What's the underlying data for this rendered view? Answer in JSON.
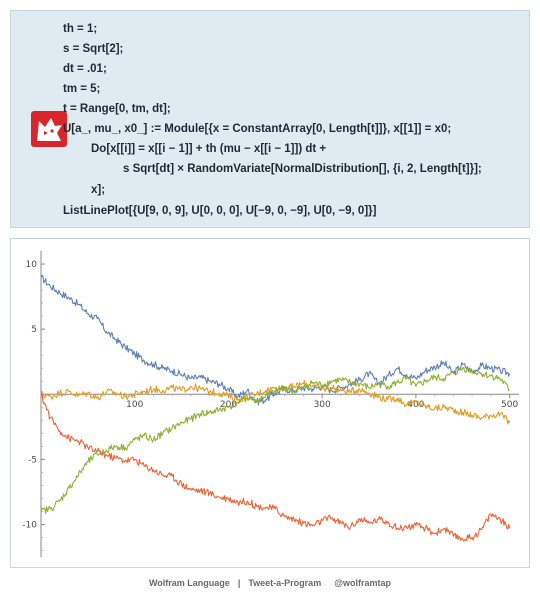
{
  "code": {
    "lines": [
      "th = 1;",
      "s = Sqrt[2];",
      "dt = .01;",
      "tm = 5;",
      "t = Range[0, tm, dt];",
      "U[a_, mu_, x0_] := Module[{x = ConstantArray[0, Length[t]]}, x[[1]] = x0;",
      "Do[x[[i]] = x[[i − 1]] + th (mu − x[[i − 1]]) dt +",
      "s Sqrt[dt] × RandomVariate[NormalDistribution[], {i, 2, Length[t]}];",
      "x];",
      "ListLinePlot[{U[9, 0, 9], U[0, 0, 0], U[−9, 0, −9], U[0, −9, 0]}]"
    ]
  },
  "colors": {
    "panel_bg": "#dfeaf1",
    "logo_red": "#d8262c",
    "series_blue": "#5e81b5",
    "series_orange": "#e19c24",
    "series_green": "#8fb032",
    "series_red": "#eb6235"
  },
  "icons": {
    "logo": "wolfram-wolf-icon"
  },
  "chart_data": {
    "type": "line",
    "title": "",
    "xlabel": "",
    "ylabel": "",
    "xlim": [
      0,
      510
    ],
    "ylim": [
      -12.5,
      11
    ],
    "x_ticks": [
      100,
      200,
      300,
      400,
      500
    ],
    "y_ticks": [
      -10,
      -5,
      5,
      10
    ],
    "x_tick_labels": [
      "100",
      "200",
      "300",
      "400",
      "500"
    ],
    "y_tick_labels": [
      "-10",
      "-5",
      "5",
      "10"
    ],
    "grid": false,
    "series": [
      {
        "color": "#5e81b5",
        "x": [
          0,
          10,
          20,
          30,
          40,
          50,
          60,
          70,
          80,
          90,
          100,
          110,
          120,
          130,
          140,
          150,
          160,
          170,
          180,
          190,
          200,
          210,
          220,
          230,
          240,
          250,
          260,
          270,
          280,
          290,
          300,
          310,
          320,
          330,
          340,
          350,
          360,
          370,
          380,
          390,
          400,
          410,
          420,
          430,
          440,
          450,
          460,
          470,
          480,
          490,
          500
        ],
        "values": [
          9,
          8.3,
          7.8,
          7.4,
          6.9,
          6.2,
          5.8,
          4.8,
          4.2,
          3.6,
          3.1,
          2.6,
          2.3,
          2,
          1.8,
          1.5,
          1.2,
          1.3,
          1,
          0.8,
          0.4,
          -0.2,
          0.3,
          -0.6,
          -0.4,
          0.1,
          0.4,
          0.3,
          0.5,
          0.4,
          0.6,
          0.3,
          0.5,
          0.8,
          1.1,
          1.6,
          0.8,
          1.4,
          2,
          1.5,
          1.2,
          1.8,
          2.1,
          2.4,
          1.6,
          2.3,
          1.7,
          2.2,
          2,
          1.8,
          1.6
        ]
      },
      {
        "color": "#e19c24",
        "x": [
          0,
          10,
          20,
          30,
          40,
          50,
          60,
          70,
          80,
          90,
          100,
          110,
          120,
          130,
          140,
          150,
          160,
          170,
          180,
          190,
          200,
          210,
          220,
          230,
          240,
          250,
          260,
          270,
          280,
          290,
          300,
          310,
          320,
          330,
          340,
          350,
          360,
          370,
          380,
          390,
          400,
          410,
          420,
          430,
          440,
          450,
          460,
          470,
          480,
          490,
          500
        ],
        "values": [
          0,
          -0.2,
          0.1,
          0.2,
          -0.1,
          0.1,
          -0.3,
          0.2,
          0.1,
          -0.2,
          0,
          0.2,
          0.4,
          0.3,
          0.5,
          0.3,
          0.6,
          0.4,
          0.2,
          0.1,
          -0.1,
          -0.4,
          -0.2,
          0,
          0.3,
          0.5,
          0.4,
          0.6,
          0.8,
          0.7,
          0.4,
          0.5,
          0.3,
          0.2,
          0.4,
          0.1,
          -0.2,
          -0.4,
          -0.3,
          -0.8,
          -0.6,
          -0.9,
          -1.1,
          -1,
          -1.2,
          -1.4,
          -1.6,
          -1.8,
          -1.6,
          -1.5,
          -2.2
        ]
      },
      {
        "color": "#8fb032",
        "x": [
          0,
          10,
          20,
          30,
          40,
          50,
          60,
          70,
          80,
          90,
          100,
          110,
          120,
          130,
          140,
          150,
          160,
          170,
          180,
          190,
          200,
          210,
          220,
          230,
          240,
          250,
          260,
          270,
          280,
          290,
          300,
          310,
          320,
          330,
          340,
          350,
          360,
          370,
          380,
          390,
          400,
          410,
          420,
          430,
          440,
          450,
          460,
          470,
          480,
          490,
          500
        ],
        "values": [
          -9,
          -8.8,
          -8.2,
          -7.2,
          -6.2,
          -5.2,
          -4.6,
          -4.3,
          -4,
          -4.1,
          -3.5,
          -3.2,
          -3.5,
          -3,
          -2.6,
          -2.2,
          -1.9,
          -1.5,
          -1.4,
          -1.2,
          -1,
          -0.6,
          -0.3,
          -0.5,
          -0.1,
          0.2,
          0.6,
          0.2,
          0.5,
          0.9,
          0.7,
          1,
          1.1,
          0.9,
          0.8,
          0.5,
          0.8,
          0.6,
          0.9,
          1.2,
          0.6,
          1,
          1.3,
          1.2,
          1.6,
          2,
          1.8,
          1.6,
          1.4,
          1.2,
          0.3
        ]
      },
      {
        "color": "#eb6235",
        "x": [
          0,
          10,
          20,
          30,
          40,
          50,
          60,
          70,
          80,
          90,
          100,
          110,
          120,
          130,
          140,
          150,
          160,
          170,
          180,
          190,
          200,
          210,
          220,
          230,
          240,
          250,
          260,
          270,
          280,
          290,
          300,
          310,
          320,
          330,
          340,
          350,
          360,
          370,
          380,
          390,
          400,
          410,
          420,
          430,
          440,
          450,
          460,
          470,
          480,
          490,
          500
        ],
        "values": [
          0,
          -1.8,
          -2.8,
          -3.4,
          -3.6,
          -4.1,
          -4.4,
          -4.7,
          -4.9,
          -5.1,
          -5.0,
          -5.5,
          -5.8,
          -6.2,
          -6.3,
          -6.9,
          -7.3,
          -7.4,
          -7.6,
          -7.9,
          -8.0,
          -8.3,
          -8.2,
          -8.6,
          -8.7,
          -8.8,
          -9.4,
          -9.6,
          -9.9,
          -10.1,
          -9.7,
          -9.5,
          -9.9,
          -10.2,
          -9.6,
          -9.9,
          -9.6,
          -9.8,
          -10.3,
          -10.2,
          -10.1,
          -10.3,
          -10.7,
          -10.3,
          -10.9,
          -11.1,
          -11.0,
          -10.4,
          -9.2,
          -9.6,
          -10.3
        ]
      }
    ]
  },
  "footer": {
    "language": "Wolfram Language",
    "separator": "|",
    "program": "Tweet-a-Program",
    "handle": "@wolframtap"
  }
}
